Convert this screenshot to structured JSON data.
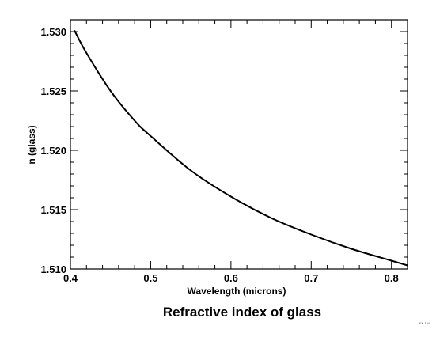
{
  "chart_data": {
    "type": "line",
    "title": "Refractive index of glass",
    "xlabel": "Wavelength (microns)",
    "ylabel": "n (glass)",
    "xlim": [
      0.4,
      0.82
    ],
    "ylim": [
      1.51,
      1.531
    ],
    "x_ticks": [
      "0.4",
      "0.5",
      "0.6",
      "0.7",
      "0.8"
    ],
    "y_ticks": [
      "1.510",
      "1.515",
      "1.520",
      "1.525",
      "1.530"
    ],
    "grid": false,
    "line_color": "#000000",
    "series": [
      {
        "x": [
          0.405,
          0.42,
          0.45,
          0.48,
          0.5,
          0.55,
          0.6,
          0.65,
          0.7,
          0.75,
          0.8,
          0.82
        ],
        "values": [
          1.5301,
          1.5282,
          1.525,
          1.5225,
          1.5212,
          1.5183,
          1.5161,
          1.5143,
          1.5129,
          1.5117,
          1.5107,
          1.5103
        ]
      }
    ]
  },
  "corner_code": "EK-1-M"
}
